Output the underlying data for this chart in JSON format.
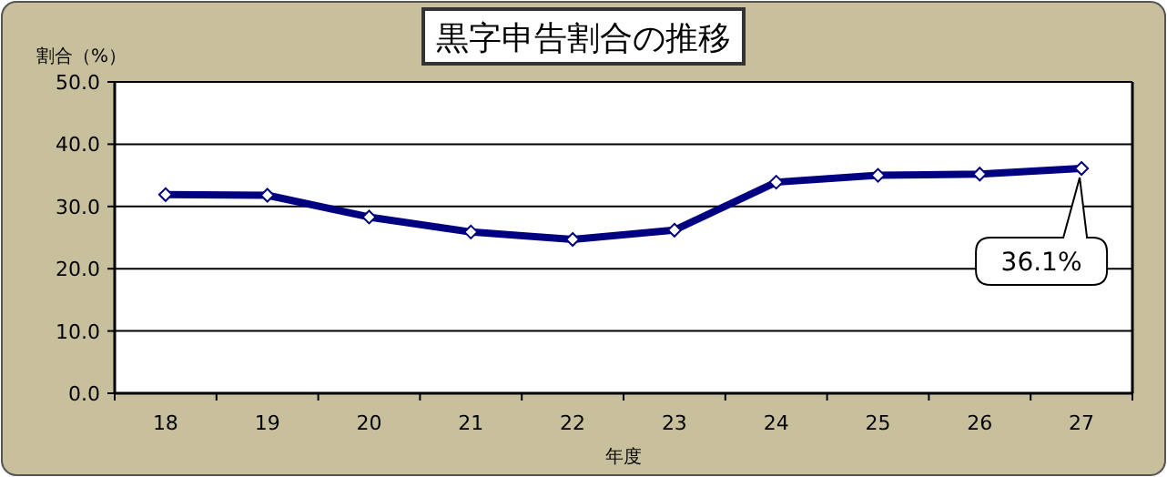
{
  "chart_data": {
    "type": "line",
    "title": "黒字申告割合の推移",
    "xlabel": "年度",
    "ylabel": "割合（%）",
    "categories": [
      "18",
      "19",
      "20",
      "21",
      "22",
      "23",
      "24",
      "25",
      "26",
      "27"
    ],
    "series": [
      {
        "color": "#000080",
        "values": [
          31.9,
          31.8,
          28.3,
          25.9,
          24.7,
          26.2,
          33.9,
          35.0,
          35.2,
          36.1
        ],
        "value_labels": [
          null,
          null,
          null,
          null,
          null,
          null,
          null,
          null,
          null,
          "36.1%"
        ]
      }
    ],
    "ylim": [
      0,
      50
    ],
    "yticks": [
      {
        "value": 0,
        "label": "0.0"
      },
      {
        "value": 10,
        "label": "10.0"
      },
      {
        "value": 20,
        "label": "20.0"
      },
      {
        "value": 30,
        "label": "30.0"
      },
      {
        "value": 40,
        "label": "40.0"
      },
      {
        "value": 50,
        "label": "50.0"
      }
    ],
    "grid": "y",
    "marker": "diamond",
    "line_style": "solid"
  }
}
